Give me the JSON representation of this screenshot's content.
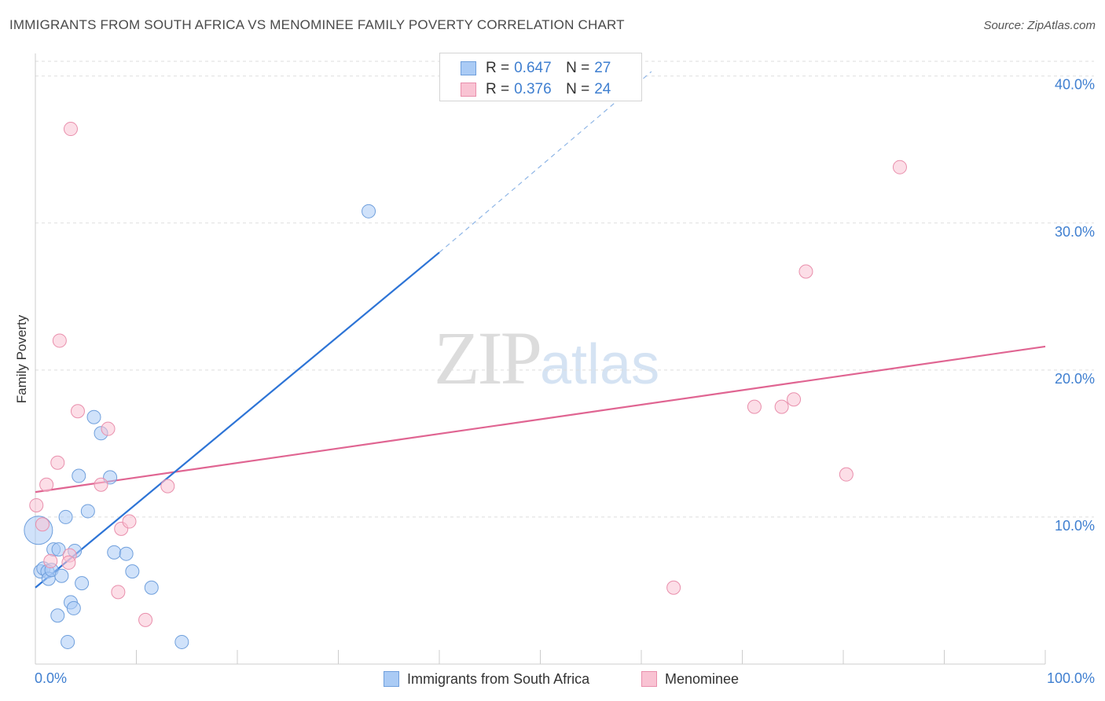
{
  "header": {
    "title": "IMMIGRANTS FROM SOUTH AFRICA VS MENOMINEE FAMILY POVERTY CORRELATION CHART",
    "source": "Source: ZipAtlas.com"
  },
  "watermark": {
    "part1": "ZIP",
    "part2": "atlas"
  },
  "legend": {
    "rows": [
      {
        "r_label": "R =",
        "r_value": "0.647",
        "n_label": "N =",
        "n_value": "27"
      },
      {
        "r_label": "R =",
        "r_value": "0.376",
        "n_label": "N =",
        "n_value": "24"
      }
    ],
    "series_names": [
      "Immigrants from South Africa",
      "Menominee"
    ]
  },
  "colors": {
    "blue_fill": "#aacbf5",
    "blue_edge": "#6f9fdc",
    "blue_line": "#2d74d6",
    "pink_fill": "#f9c3d3",
    "pink_edge": "#e98fac",
    "pink_line": "#e06592",
    "axis_text": "#3f7fd0",
    "grid": "#dddddd"
  },
  "chart_data": {
    "type": "scatter",
    "title": "IMMIGRANTS FROM SOUTH AFRICA VS MENOMINEE FAMILY POVERTY CORRELATION CHART",
    "xlabel": "",
    "ylabel": "Family Poverty",
    "xlim": [
      0,
      100
    ],
    "ylim": [
      0,
      41
    ],
    "x_tick_labels": [
      "0.0%",
      "100.0%"
    ],
    "y_ticks": [
      10,
      20,
      30,
      40
    ],
    "y_tick_labels": [
      "10.0%",
      "20.0%",
      "30.0%",
      "40.0%"
    ],
    "grid": true,
    "series": [
      {
        "name": "Immigrants from South Africa",
        "color": "blue",
        "points": [
          {
            "x": 0.3,
            "y": 9.1,
            "big": true
          },
          {
            "x": 0.5,
            "y": 6.3
          },
          {
            "x": 0.8,
            "y": 6.5
          },
          {
            "x": 1.2,
            "y": 6.3
          },
          {
            "x": 1.3,
            "y": 5.8
          },
          {
            "x": 1.6,
            "y": 6.4
          },
          {
            "x": 1.8,
            "y": 7.8
          },
          {
            "x": 2.3,
            "y": 7.8
          },
          {
            "x": 2.6,
            "y": 6.0
          },
          {
            "x": 3.0,
            "y": 10.0
          },
          {
            "x": 3.2,
            "y": 1.5
          },
          {
            "x": 3.5,
            "y": 4.2
          },
          {
            "x": 3.8,
            "y": 3.8
          },
          {
            "x": 3.9,
            "y": 7.7
          },
          {
            "x": 4.3,
            "y": 12.8
          },
          {
            "x": 4.6,
            "y": 5.5
          },
          {
            "x": 5.2,
            "y": 10.4
          },
          {
            "x": 5.8,
            "y": 16.8
          },
          {
            "x": 6.5,
            "y": 15.7
          },
          {
            "x": 7.4,
            "y": 12.7
          },
          {
            "x": 7.8,
            "y": 7.6
          },
          {
            "x": 9.0,
            "y": 7.5
          },
          {
            "x": 9.6,
            "y": 6.3
          },
          {
            "x": 11.5,
            "y": 5.2
          },
          {
            "x": 14.5,
            "y": 1.5
          },
          {
            "x": 2.2,
            "y": 3.3
          },
          {
            "x": 33.0,
            "y": 30.8
          }
        ],
        "trend": {
          "x0": 0,
          "y0": 5.2,
          "x1": 40,
          "y1": 28.0,
          "dash_x1": 61,
          "dash_y1": 40.3
        }
      },
      {
        "name": "Menominee",
        "color": "pink",
        "points": [
          {
            "x": 0.1,
            "y": 10.8
          },
          {
            "x": 0.7,
            "y": 9.5
          },
          {
            "x": 1.1,
            "y": 12.2
          },
          {
            "x": 1.5,
            "y": 7.0
          },
          {
            "x": 2.2,
            "y": 13.7
          },
          {
            "x": 2.4,
            "y": 22.0
          },
          {
            "x": 3.4,
            "y": 7.4
          },
          {
            "x": 3.5,
            "y": 36.4
          },
          {
            "x": 3.3,
            "y": 6.9
          },
          {
            "x": 4.2,
            "y": 17.2
          },
          {
            "x": 6.5,
            "y": 12.2
          },
          {
            "x": 7.2,
            "y": 16.0
          },
          {
            "x": 8.2,
            "y": 4.9
          },
          {
            "x": 8.5,
            "y": 9.2
          },
          {
            "x": 9.3,
            "y": 9.7
          },
          {
            "x": 10.9,
            "y": 3.0
          },
          {
            "x": 13.1,
            "y": 12.1
          },
          {
            "x": 63.2,
            "y": 5.2
          },
          {
            "x": 71.2,
            "y": 17.5
          },
          {
            "x": 73.9,
            "y": 17.5
          },
          {
            "x": 75.1,
            "y": 18.0
          },
          {
            "x": 76.3,
            "y": 26.7
          },
          {
            "x": 80.3,
            "y": 12.9
          },
          {
            "x": 85.6,
            "y": 33.8
          }
        ],
        "trend": {
          "x0": 0,
          "y0": 11.7,
          "x1": 100,
          "y1": 21.6
        }
      }
    ]
  }
}
